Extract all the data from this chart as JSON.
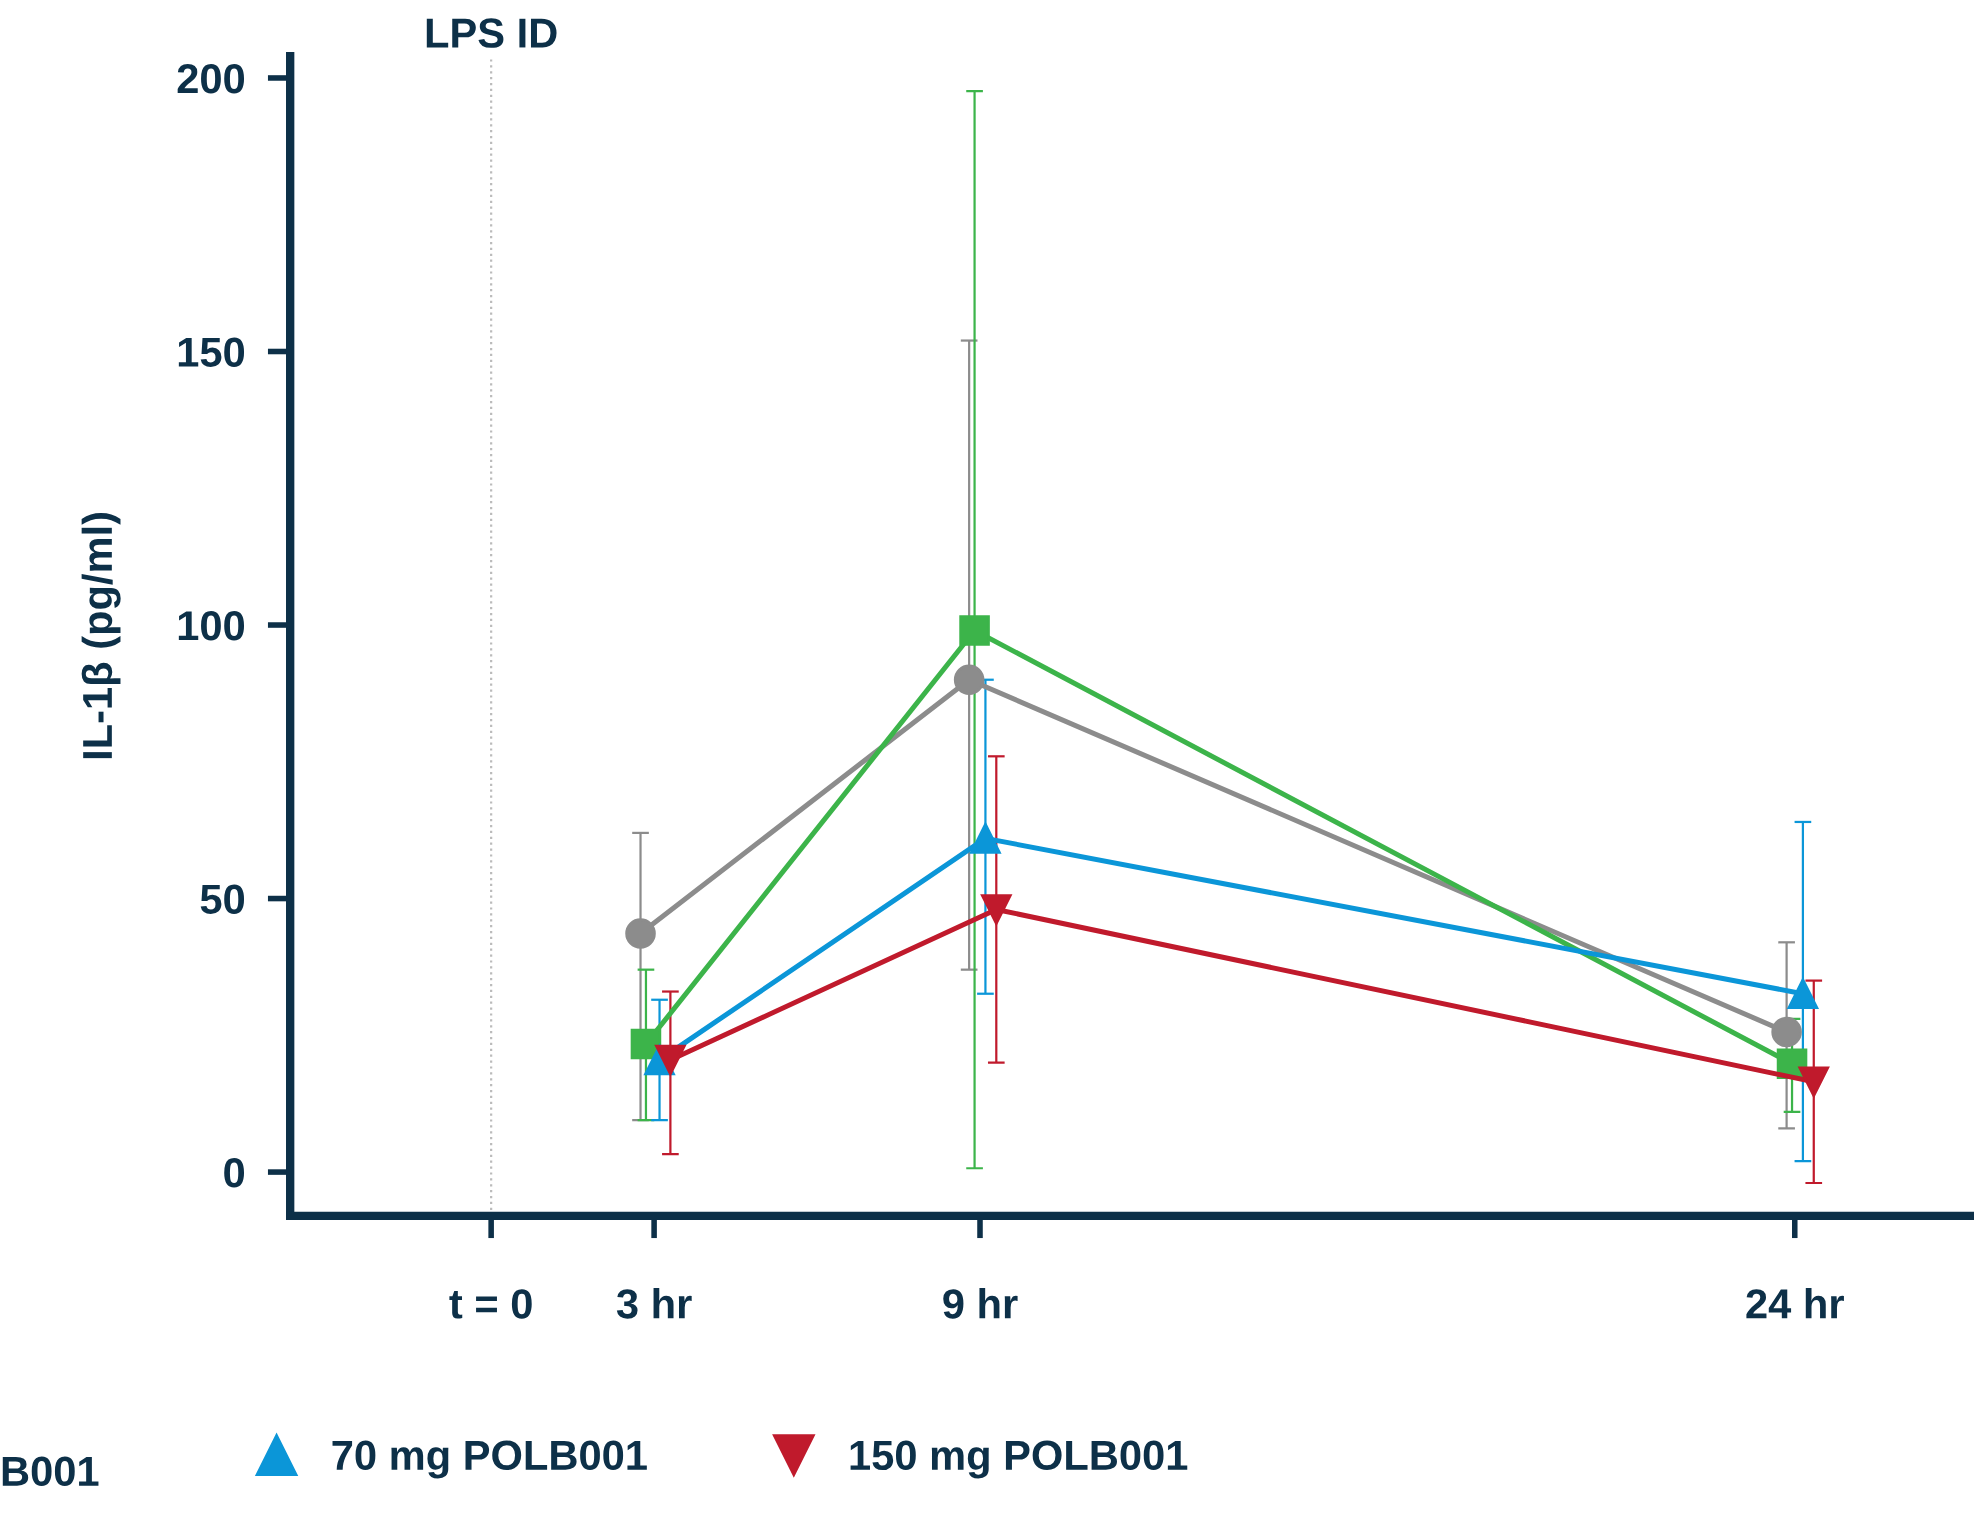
{
  "chart_data": {
    "type": "line",
    "ylabel": "IL-1β (pg/ml)",
    "xlim": [
      -3.7,
      27.3
    ],
    "xticks": [
      {
        "value": 0,
        "label": "t = 0"
      },
      {
        "value": 3,
        "label": "3 hr"
      },
      {
        "value": 9,
        "label": "9 hr"
      },
      {
        "value": 24,
        "label": "24 hr"
      }
    ],
    "ylim": [
      -8,
      204
    ],
    "yticks": [
      0,
      50,
      100,
      150,
      200
    ],
    "grid": false,
    "legend": "bottom",
    "ref_lines": [
      {
        "axis": "x",
        "value": 0,
        "label": "LPS ID",
        "color": "#bbbbbb",
        "line_style": "dotted"
      }
    ],
    "annotations": [
      "B001"
    ],
    "series": [
      {
        "color": "#8c8c8c",
        "marker": "circle",
        "x": [
          2.75,
          8.8,
          23.85
        ],
        "values": [
          43.6,
          90,
          25.6
        ],
        "errors": [
          [
            9.5,
            62
          ],
          [
            37,
            152
          ],
          [
            8,
            42
          ]
        ]
      },
      {
        "color": "#3cb44a",
        "marker": "square",
        "x": [
          2.85,
          8.9,
          23.95
        ],
        "values": [
          23.4,
          99,
          19.8
        ],
        "errors": [
          [
            9.5,
            37
          ],
          [
            0.7,
            197.6
          ],
          [
            11,
            28
          ]
        ]
      },
      {
        "name": "70 mg POLB001",
        "color": "#0b96d8",
        "marker": "triangle",
        "x": [
          3.1,
          9.1,
          24.15
        ],
        "values": [
          20.5,
          61,
          32.6
        ],
        "errors": [
          [
            9.5,
            31.5
          ],
          [
            32.6,
            90
          ],
          [
            2,
            64
          ]
        ]
      },
      {
        "name": "150 mg POLB001",
        "color": "#c01a2c",
        "marker": "triangle_down",
        "x": [
          3.3,
          9.3,
          24.35
        ],
        "values": [
          20.5,
          48,
          16.5
        ],
        "errors": [
          [
            3.3,
            33
          ],
          [
            20,
            76
          ],
          [
            -2,
            35
          ]
        ]
      }
    ]
  }
}
